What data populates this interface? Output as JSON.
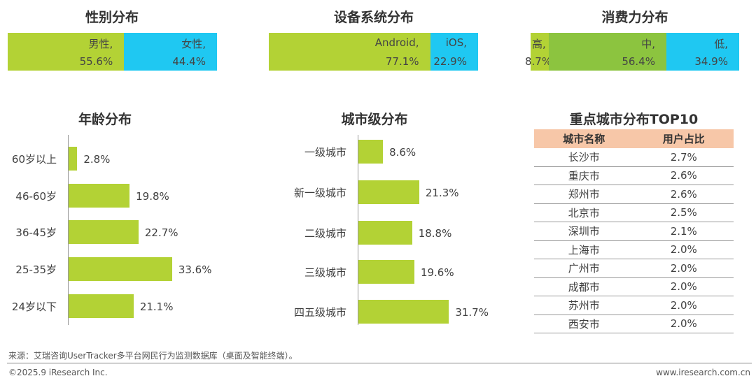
{
  "chart_data": [
    {
      "type": "stacked-bar",
      "title": "性别分布",
      "segments": [
        {
          "name": "男性",
          "value": 55.6,
          "label": "55.6%",
          "color": "#b3d235"
        },
        {
          "name": "女性",
          "value": 44.4,
          "label": "44.4%",
          "color": "#1fc8f2"
        }
      ]
    },
    {
      "type": "stacked-bar",
      "title": "设备系统分布",
      "segments": [
        {
          "name": "Android",
          "value": 77.1,
          "label": "77.1%",
          "color": "#b3d235"
        },
        {
          "name": "iOS",
          "value": 22.9,
          "label": "22.9%",
          "color": "#1fc8f2"
        }
      ]
    },
    {
      "type": "stacked-bar",
      "title": "消费力分布",
      "segments": [
        {
          "name": "高",
          "value": 8.7,
          "label": "8.7%",
          "color": "#b3d235"
        },
        {
          "name": "中",
          "value": 56.4,
          "label": "56.4%",
          "color": "#8cc43f"
        },
        {
          "name": "低",
          "value": 34.9,
          "label": "34.9%",
          "color": "#1fc8f2"
        }
      ]
    },
    {
      "type": "bar",
      "orientation": "horizontal",
      "title": "年龄分布",
      "categories": [
        "60岁以上",
        "46-60岁",
        "36-45岁",
        "25-35岁",
        "24岁以下"
      ],
      "values": [
        2.8,
        19.8,
        22.7,
        33.6,
        21.1
      ],
      "labels": [
        "2.8%",
        "19.8%",
        "22.7%",
        "33.6%",
        "21.1%"
      ],
      "unit": "%"
    },
    {
      "type": "bar",
      "orientation": "horizontal",
      "title": "城市级分布",
      "categories": [
        "一级城市",
        "新一级城市",
        "二级城市",
        "三级城市",
        "四五级城市"
      ],
      "values": [
        8.6,
        21.3,
        18.8,
        19.6,
        31.7
      ],
      "labels": [
        "8.6%",
        "21.3%",
        "18.8%",
        "19.6%",
        "31.7%"
      ],
      "unit": "%"
    },
    {
      "type": "table",
      "title": "重点城市分布TOP10",
      "columns": [
        "城市名称",
        "用户占比"
      ],
      "rows": [
        [
          "长沙市",
          "2.7%"
        ],
        [
          "重庆市",
          "2.6%"
        ],
        [
          "郑州市",
          "2.6%"
        ],
        [
          "北京市",
          "2.5%"
        ],
        [
          "深圳市",
          "2.1%"
        ],
        [
          "上海市",
          "2.0%"
        ],
        [
          "广州市",
          "2.0%"
        ],
        [
          "成都市",
          "2.0%"
        ],
        [
          "苏州市",
          "2.0%"
        ],
        [
          "西安市",
          "2.0%"
        ]
      ]
    }
  ],
  "footer": {
    "source": "来源：艾瑞咨询UserTracker多平台网民行为监测数据库（桌面及智能终端）。",
    "copyright": "©2025.9 iResearch Inc.",
    "website": "www.iresearch.com.cn"
  }
}
